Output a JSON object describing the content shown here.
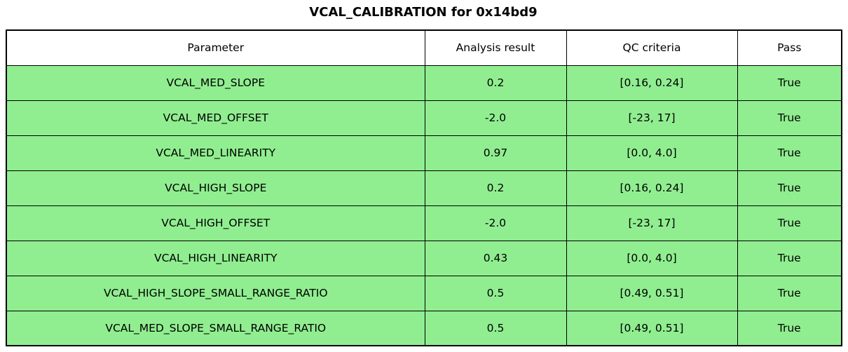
{
  "colors": {
    "row_bg": "#90EE90",
    "header_bg": "#FFFFFF",
    "border": "#000000",
    "text": "#000000",
    "page_bg": "#FFFFFF"
  },
  "chart_data": {
    "type": "table",
    "title": "VCAL_CALIBRATION for 0x14bd9",
    "columns": [
      "Parameter",
      "Analysis result",
      "QC criteria",
      "Pass"
    ],
    "rows": [
      {
        "parameter": "VCAL_MED_SLOPE",
        "analysis_result": "0.2",
        "qc_criteria": "[0.16, 0.24]",
        "pass": "True"
      },
      {
        "parameter": "VCAL_MED_OFFSET",
        "analysis_result": "-2.0",
        "qc_criteria": "[-23, 17]",
        "pass": "True"
      },
      {
        "parameter": "VCAL_MED_LINEARITY",
        "analysis_result": "0.97",
        "qc_criteria": "[0.0, 4.0]",
        "pass": "True"
      },
      {
        "parameter": "VCAL_HIGH_SLOPE",
        "analysis_result": "0.2",
        "qc_criteria": "[0.16, 0.24]",
        "pass": "True"
      },
      {
        "parameter": "VCAL_HIGH_OFFSET",
        "analysis_result": "-2.0",
        "qc_criteria": "[-23, 17]",
        "pass": "True"
      },
      {
        "parameter": "VCAL_HIGH_LINEARITY",
        "analysis_result": "0.43",
        "qc_criteria": "[0.0, 4.0]",
        "pass": "True"
      },
      {
        "parameter": "VCAL_HIGH_SLOPE_SMALL_RANGE_RATIO",
        "analysis_result": "0.5",
        "qc_criteria": "[0.49, 0.51]",
        "pass": "True"
      },
      {
        "parameter": "VCAL_MED_SLOPE_SMALL_RANGE_RATIO",
        "analysis_result": "0.5",
        "qc_criteria": "[0.49, 0.51]",
        "pass": "True"
      }
    ]
  }
}
